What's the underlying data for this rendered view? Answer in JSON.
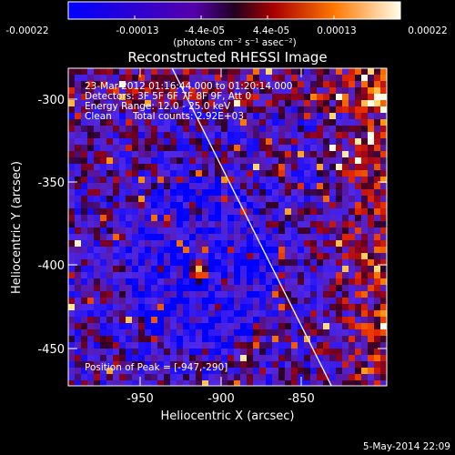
{
  "colorbar": {
    "tick_labels": [
      "-0.00022",
      "-0.00013",
      "-4.4e-05",
      "4.4e-05",
      "0.00013",
      "0.00022"
    ],
    "units_label": "(photons cm⁻² s⁻¹ asec⁻²)",
    "range": [
      -0.00022,
      0.00022
    ]
  },
  "plot": {
    "title": "Reconstructed RHESSI Image",
    "xlabel": "Heliocentric X (arcsec)",
    "ylabel": "Heliocentric Y (arcsec)",
    "x_ticks": [
      "-950",
      "-900",
      "-850"
    ],
    "y_ticks": [
      "-300",
      "-350",
      "-400",
      "-450"
    ],
    "xlim": [
      -995,
      -805
    ],
    "ylim": [
      -472,
      -285
    ],
    "limb_line": {
      "x": [
        -933,
        -838
      ],
      "y": [
        -285,
        -472
      ]
    },
    "colors": {
      "background": "#000000",
      "low": "#0000ff",
      "mid": "#550099",
      "high": "#ffffff",
      "line": "#ffffff"
    }
  },
  "info": {
    "time_range": "23-Mar-2012 01:16:44.000 to 01:20:14.000",
    "detectors": "Detectors: 3F 5F 6F 7F 8F 9F, Att 0",
    "energy_range": "Energy Range: 12.0 - 25.0 keV",
    "clean": "Clean",
    "total_counts": "Total counts: 2.92E+03",
    "peak_position": "Position of Peak = [-947,-290]"
  },
  "footer": {
    "date": "5-May-2014 22:09"
  }
}
